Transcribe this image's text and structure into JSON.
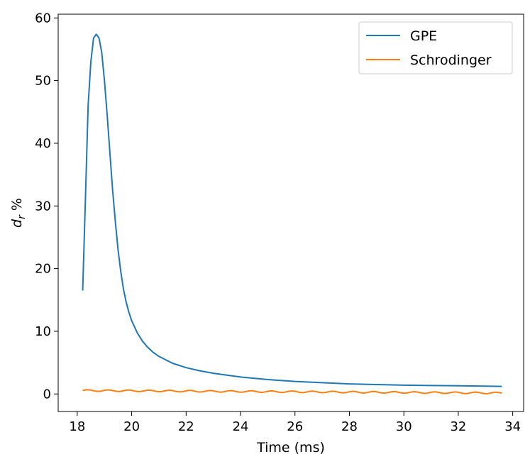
{
  "chart_data": {
    "type": "line",
    "title": "",
    "xlabel": "Time (ms)",
    "ylabel_main": "d",
    "ylabel_sub": "r",
    "ylabel_unit": "%",
    "xlim": [
      17.3,
      34.4
    ],
    "ylim": [
      -2.8,
      60.6
    ],
    "xticks": [
      18,
      20,
      22,
      24,
      26,
      28,
      30,
      32,
      34
    ],
    "yticks": [
      0,
      10,
      20,
      30,
      40,
      50,
      60
    ],
    "grid": false,
    "legend_position": "top-right",
    "series": [
      {
        "name": "GPE",
        "color": "#1f77b4",
        "x": [
          18.2,
          18.3,
          18.4,
          18.5,
          18.6,
          18.7,
          18.8,
          18.9,
          19.0,
          19.1,
          19.2,
          19.3,
          19.4,
          19.5,
          19.6,
          19.7,
          19.8,
          19.9,
          20.0,
          20.2,
          20.4,
          20.6,
          20.8,
          21.0,
          21.5,
          22.0,
          22.5,
          23.0,
          23.5,
          24.0,
          25.0,
          26.0,
          27.0,
          28.0,
          29.0,
          30.0,
          31.0,
          32.0,
          33.0,
          33.6
        ],
        "y": [
          16.5,
          31.0,
          46.0,
          53.0,
          56.8,
          57.4,
          56.8,
          54.5,
          50.0,
          44.5,
          38.5,
          32.5,
          27.5,
          23.0,
          19.5,
          16.7,
          14.6,
          13.0,
          11.7,
          9.8,
          8.4,
          7.4,
          6.6,
          6.0,
          4.9,
          4.2,
          3.7,
          3.3,
          3.0,
          2.7,
          2.3,
          2.0,
          1.8,
          1.6,
          1.5,
          1.4,
          1.35,
          1.3,
          1.25,
          1.2
        ]
      },
      {
        "name": "Schrodinger",
        "color": "#ff7f0e",
        "x_start": 18.2,
        "x_end": 33.6,
        "baseline_start": 0.55,
        "baseline_end": 0.15,
        "ripple_amplitude": 0.12,
        "ripple_period": 0.75
      }
    ]
  }
}
